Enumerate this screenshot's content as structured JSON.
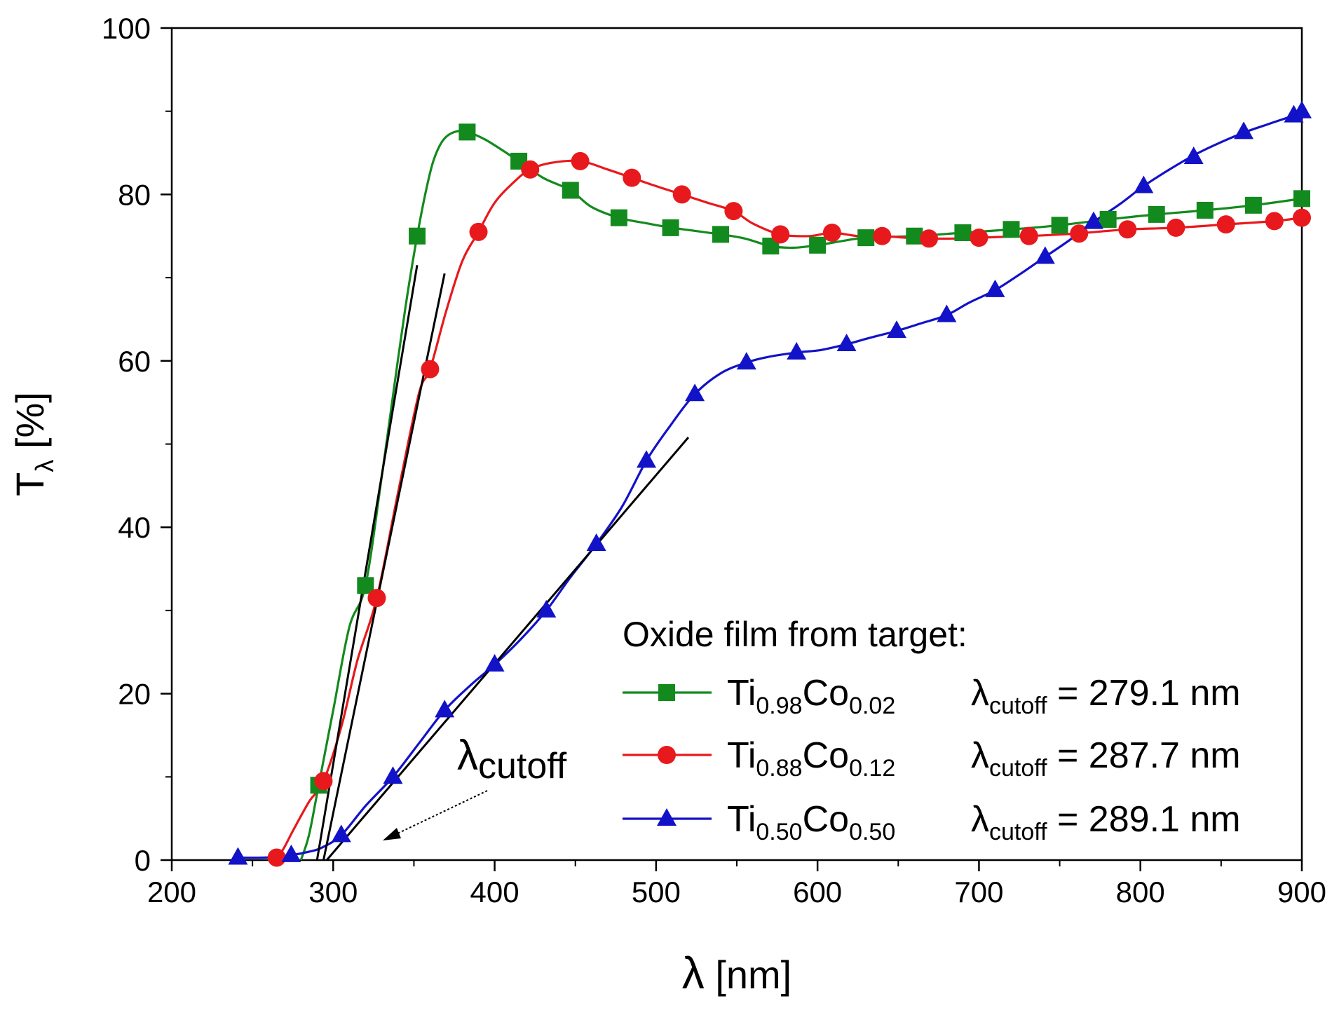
{
  "chart_data": {
    "type": "line",
    "xlabel": "λ [nm]",
    "xlabel_symbol": "λ",
    "xlabel_unit": "[nm]",
    "ylabel_main": "T",
    "ylabel_sub": "λ",
    "ylabel_unit": "[%]",
    "xlim": [
      200,
      900
    ],
    "ylim": [
      0,
      100
    ],
    "x_ticks": [
      200,
      300,
      400,
      500,
      600,
      700,
      800,
      900
    ],
    "y_ticks": [
      0,
      20,
      40,
      60,
      80,
      100
    ],
    "legend_title": "Oxide film from target:",
    "legend_position": "bottom-right",
    "annotation": {
      "main": "λ",
      "sub": "cutoff"
    },
    "series": [
      {
        "name": "Ti0.98Co0.02",
        "label_parts": [
          "Ti",
          "0.98",
          "Co",
          "0.02"
        ],
        "cutoff_main": "λ",
        "cutoff_sub": "cutoff",
        "cutoff_value": "= 279.1 nm",
        "color": "#138a1e",
        "marker": "square",
        "curve": [
          [
            280,
            0
          ],
          [
            285,
            3
          ],
          [
            291,
            9
          ],
          [
            300,
            18
          ],
          [
            310,
            28
          ],
          [
            320,
            33
          ],
          [
            330,
            46
          ],
          [
            340,
            60
          ],
          [
            346,
            68
          ],
          [
            352,
            75
          ],
          [
            357,
            80
          ],
          [
            362,
            84
          ],
          [
            368,
            86.5
          ],
          [
            375,
            87.5
          ],
          [
            383,
            87.5
          ],
          [
            395,
            86.5
          ],
          [
            415,
            84
          ],
          [
            430,
            82
          ],
          [
            447,
            80.5
          ],
          [
            460,
            78.5
          ],
          [
            477,
            77.2
          ],
          [
            495,
            76.5
          ],
          [
            510,
            76
          ],
          [
            540,
            75.2
          ],
          [
            555,
            74.7
          ],
          [
            571,
            73.8
          ],
          [
            585,
            73.6
          ],
          [
            600,
            73.9
          ],
          [
            615,
            74.4
          ],
          [
            630,
            74.8
          ],
          [
            660,
            75
          ],
          [
            690,
            75.4
          ],
          [
            720,
            75.8
          ],
          [
            750,
            76.3
          ],
          [
            780,
            77
          ],
          [
            810,
            77.6
          ],
          [
            840,
            78.1
          ],
          [
            870,
            78.7
          ],
          [
            900,
            79.5
          ]
        ],
        "markers": [
          [
            291,
            9
          ],
          [
            320,
            33
          ],
          [
            352,
            75
          ],
          [
            383,
            87.5
          ],
          [
            415,
            84
          ],
          [
            447,
            80.5
          ],
          [
            477,
            77.2
          ],
          [
            509,
            76
          ],
          [
            540,
            75.2
          ],
          [
            571,
            73.8
          ],
          [
            600,
            73.9
          ],
          [
            630,
            74.8
          ],
          [
            660,
            75
          ],
          [
            690,
            75.4
          ],
          [
            720,
            75.8
          ],
          [
            750,
            76.3
          ],
          [
            780,
            77
          ],
          [
            810,
            77.6
          ],
          [
            840,
            78.1
          ],
          [
            870,
            78.7
          ],
          [
            900,
            79.5
          ]
        ],
        "tangent": [
          [
            290,
            0
          ],
          [
            352,
            71.5
          ]
        ]
      },
      {
        "name": "Ti0.88Co0.12",
        "label_parts": [
          "Ti",
          "0.88",
          "Co",
          "0.12"
        ],
        "cutoff_main": "λ",
        "cutoff_sub": "cutoff",
        "cutoff_value": "= 287.7 nm",
        "color": "#e8191c",
        "marker": "circle",
        "curve": [
          [
            262,
            0.2
          ],
          [
            268,
            1
          ],
          [
            275,
            3.5
          ],
          [
            285,
            7
          ],
          [
            294,
            9.5
          ],
          [
            305,
            16
          ],
          [
            315,
            24
          ],
          [
            327,
            31.5
          ],
          [
            340,
            44
          ],
          [
            353,
            56
          ],
          [
            360,
            59
          ],
          [
            370,
            66
          ],
          [
            380,
            72
          ],
          [
            390,
            75.5
          ],
          [
            400,
            79
          ],
          [
            412,
            81.5
          ],
          [
            422,
            83
          ],
          [
            435,
            83.8
          ],
          [
            453,
            84
          ],
          [
            470,
            83
          ],
          [
            485,
            82
          ],
          [
            500,
            81
          ],
          [
            516,
            80
          ],
          [
            532,
            79
          ],
          [
            548,
            78
          ],
          [
            560,
            76.5
          ],
          [
            577,
            75.2
          ],
          [
            595,
            75
          ],
          [
            609,
            75.4
          ],
          [
            625,
            75
          ],
          [
            640,
            75
          ],
          [
            655,
            74.8
          ],
          [
            669,
            74.7
          ],
          [
            685,
            74.7
          ],
          [
            700,
            74.8
          ],
          [
            715,
            74.9
          ],
          [
            731,
            75
          ],
          [
            760,
            75.3
          ],
          [
            792,
            75.8
          ],
          [
            822,
            76
          ],
          [
            853,
            76.4
          ],
          [
            883,
            76.8
          ],
          [
            900,
            77.2
          ]
        ],
        "markers": [
          [
            265,
            0.3
          ],
          [
            294,
            9.5
          ],
          [
            327,
            31.5
          ],
          [
            360,
            59
          ],
          [
            390,
            75.5
          ],
          [
            422,
            83
          ],
          [
            453,
            84
          ],
          [
            485,
            82
          ],
          [
            516,
            80
          ],
          [
            548,
            78
          ],
          [
            577,
            75.2
          ],
          [
            609,
            75.4
          ],
          [
            640,
            75
          ],
          [
            669,
            74.7
          ],
          [
            700,
            74.8
          ],
          [
            731,
            75
          ],
          [
            762,
            75.3
          ],
          [
            792,
            75.8
          ],
          [
            822,
            76
          ],
          [
            853,
            76.4
          ],
          [
            883,
            76.8
          ],
          [
            900,
            77.2
          ]
        ],
        "tangent": [
          [
            294,
            0
          ],
          [
            369,
            70.5
          ]
        ]
      },
      {
        "name": "Ti0.50Co0.50",
        "label_parts": [
          "Ti",
          "0.50",
          "Co",
          "0.50"
        ],
        "cutoff_main": "λ",
        "cutoff_sub": "cutoff",
        "cutoff_value": "= 289.1 nm",
        "color": "#1212c8",
        "marker": "triangle",
        "curve": [
          [
            241,
            0.3
          ],
          [
            258,
            0.3
          ],
          [
            274,
            0.6
          ],
          [
            285,
            1
          ],
          [
            293,
            1.5
          ],
          [
            305,
            3
          ],
          [
            320,
            6.5
          ],
          [
            337,
            10
          ],
          [
            353,
            14
          ],
          [
            369,
            18
          ],
          [
            385,
            21
          ],
          [
            400,
            23.5
          ],
          [
            416,
            26.5
          ],
          [
            432,
            30
          ],
          [
            447,
            34
          ],
          [
            463,
            38
          ],
          [
            479,
            42.5
          ],
          [
            494,
            48
          ],
          [
            508,
            52
          ],
          [
            524,
            56
          ],
          [
            540,
            58.5
          ],
          [
            556,
            59.8
          ],
          [
            570,
            60.5
          ],
          [
            587,
            61
          ],
          [
            602,
            61.3
          ],
          [
            618,
            62
          ],
          [
            633,
            62.8
          ],
          [
            649,
            63.6
          ],
          [
            664,
            64.5
          ],
          [
            680,
            65.5
          ],
          [
            694,
            67
          ],
          [
            710,
            68.5
          ],
          [
            726,
            70.5
          ],
          [
            741,
            72.5
          ],
          [
            756,
            74.5
          ],
          [
            771,
            76.7
          ],
          [
            787,
            78.8
          ],
          [
            802,
            81
          ],
          [
            818,
            83
          ],
          [
            834,
            84.8
          ],
          [
            849,
            86.2
          ],
          [
            865,
            87.5
          ],
          [
            880,
            88.5
          ],
          [
            895,
            89.5
          ],
          [
            900,
            90
          ]
        ],
        "markers": [
          [
            241,
            0.3
          ],
          [
            274,
            0.6
          ],
          [
            305,
            3
          ],
          [
            337,
            10
          ],
          [
            369,
            18
          ],
          [
            400,
            23.5
          ],
          [
            432,
            30
          ],
          [
            463,
            38
          ],
          [
            494,
            48
          ],
          [
            524,
            56
          ],
          [
            556,
            59.8
          ],
          [
            587,
            61
          ],
          [
            618,
            62
          ],
          [
            649,
            63.6
          ],
          [
            680,
            65.5
          ],
          [
            710,
            68.5
          ],
          [
            741,
            72.5
          ],
          [
            771,
            76.7
          ],
          [
            802,
            81
          ],
          [
            833,
            84.5
          ],
          [
            864,
            87.5
          ],
          [
            895,
            89.5
          ],
          [
            900,
            90
          ]
        ],
        "tangent": [
          [
            296,
            0
          ],
          [
            520,
            50.8
          ]
        ]
      }
    ]
  }
}
